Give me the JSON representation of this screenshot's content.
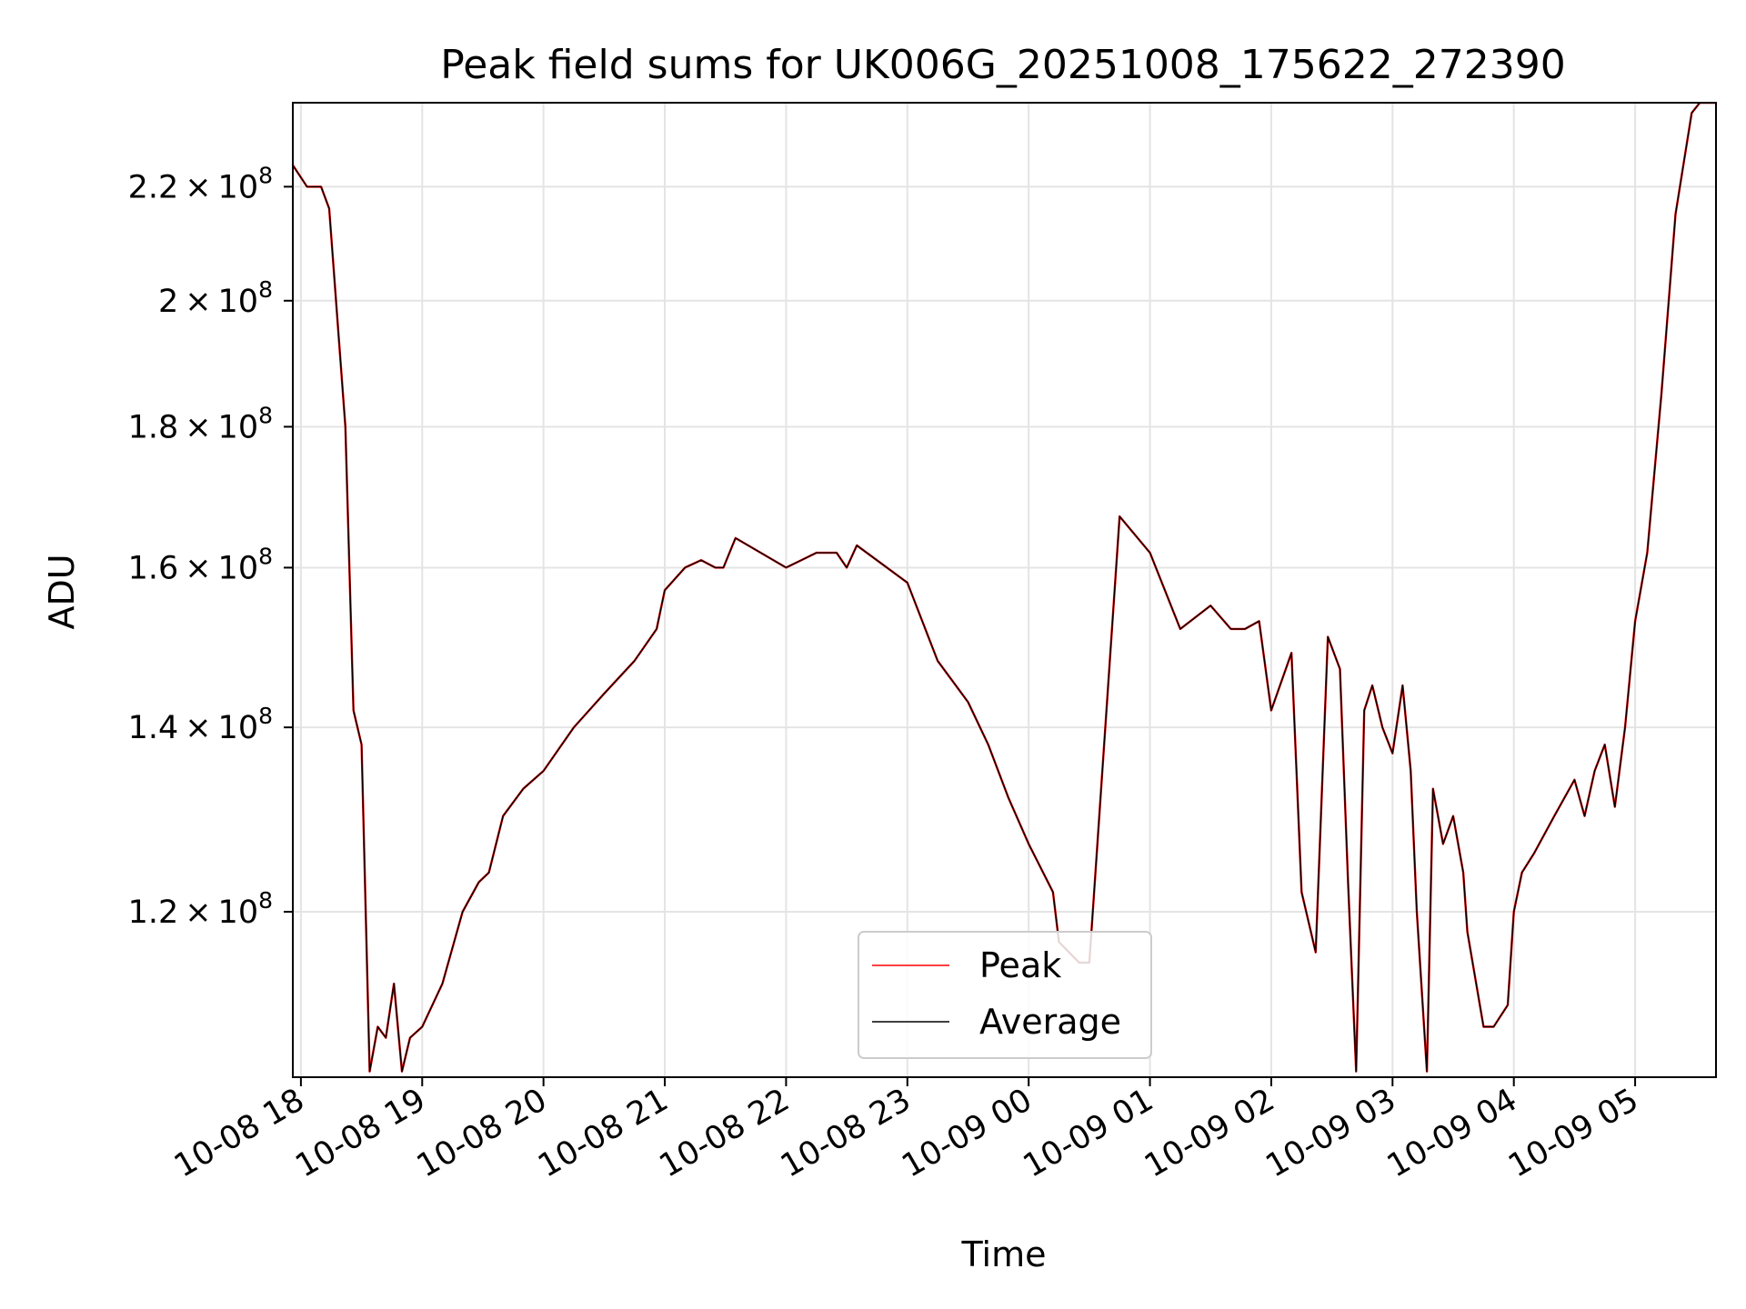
{
  "chart_data": {
    "type": "line",
    "title": "Peak field sums for UK006G_20251008_175622_272390",
    "xlabel": "Time",
    "ylabel": "ADU",
    "yscale": "log",
    "grid": true,
    "legend": {
      "position": "bottom-center",
      "entries": [
        "Peak",
        "Average"
      ]
    },
    "xlim": [
      "2025-10-08 17:56",
      "2025-10-09 05:40"
    ],
    "ylim": [
      104500000.0,
      236000000.0
    ],
    "x_ticks": [
      "10-08 18",
      "10-08 19",
      "10-08 20",
      "10-08 21",
      "10-08 22",
      "10-08 23",
      "10-09 00",
      "10-09 01",
      "10-09 02",
      "10-09 03",
      "10-09 04",
      "10-09 05"
    ],
    "y_ticks": [
      {
        "mantissa": "1.2",
        "exponent": "8"
      },
      {
        "mantissa": "1.4",
        "exponent": "8"
      },
      {
        "mantissa": "1.6",
        "exponent": "8"
      },
      {
        "mantissa": "1.8",
        "exponent": "8"
      },
      {
        "mantissa": "2",
        "exponent": "8"
      },
      {
        "mantissa": "2.2",
        "exponent": "8"
      }
    ],
    "x": [
      "2025-10-08 17:56",
      "2025-10-08 18:03",
      "2025-10-08 18:10",
      "2025-10-08 18:14",
      "2025-10-08 18:22",
      "2025-10-08 18:26",
      "2025-10-08 18:30",
      "2025-10-08 18:34",
      "2025-10-08 18:38",
      "2025-10-08 18:42",
      "2025-10-08 18:46",
      "2025-10-08 18:50",
      "2025-10-08 18:54",
      "2025-10-08 19:00",
      "2025-10-08 19:10",
      "2025-10-08 19:20",
      "2025-10-08 19:28",
      "2025-10-08 19:33",
      "2025-10-08 19:40",
      "2025-10-08 19:50",
      "2025-10-08 20:00",
      "2025-10-08 20:15",
      "2025-10-08 20:30",
      "2025-10-08 20:45",
      "2025-10-08 20:56",
      "2025-10-08 21:00",
      "2025-10-08 21:10",
      "2025-10-08 21:18",
      "2025-10-08 21:25",
      "2025-10-08 21:29",
      "2025-10-08 21:35",
      "2025-10-08 22:00",
      "2025-10-08 22:15",
      "2025-10-08 22:25",
      "2025-10-08 22:30",
      "2025-10-08 22:35",
      "2025-10-08 23:00",
      "2025-10-08 23:15",
      "2025-10-08 23:30",
      "2025-10-08 23:40",
      "2025-10-08 23:50",
      "2025-10-09 00:00",
      "2025-10-09 00:12",
      "2025-10-09 00:15",
      "2025-10-09 00:20",
      "2025-10-09 00:25",
      "2025-10-09 00:30",
      "2025-10-09 00:45",
      "2025-10-09 01:00",
      "2025-10-09 01:15",
      "2025-10-09 01:30",
      "2025-10-09 01:40",
      "2025-10-09 01:47",
      "2025-10-09 01:54",
      "2025-10-09 02:00",
      "2025-10-09 02:10",
      "2025-10-09 02:15",
      "2025-10-09 02:22",
      "2025-10-09 02:28",
      "2025-10-09 02:34",
      "2025-10-09 02:38",
      "2025-10-09 02:42",
      "2025-10-09 02:46",
      "2025-10-09 02:50",
      "2025-10-09 02:55",
      "2025-10-09 03:00",
      "2025-10-09 03:05",
      "2025-10-09 03:09",
      "2025-10-09 03:12",
      "2025-10-09 03:17",
      "2025-10-09 03:20",
      "2025-10-09 03:25",
      "2025-10-09 03:30",
      "2025-10-09 03:35",
      "2025-10-09 03:37",
      "2025-10-09 03:45",
      "2025-10-09 03:50",
      "2025-10-09 03:57",
      "2025-10-09 04:00",
      "2025-10-09 04:04",
      "2025-10-09 04:10",
      "2025-10-09 04:20",
      "2025-10-09 04:30",
      "2025-10-09 04:35",
      "2025-10-09 04:40",
      "2025-10-09 04:45",
      "2025-10-09 04:50",
      "2025-10-09 04:55",
      "2025-10-09 05:00",
      "2025-10-09 05:06",
      "2025-10-09 05:13",
      "2025-10-09 05:20",
      "2025-10-09 05:28",
      "2025-10-09 05:32",
      "2025-10-09 05:40"
    ],
    "series": [
      {
        "name": "Peak",
        "color": "#ff0000",
        "values": [
          224000000.0,
          220000000.0,
          220000000.0,
          216000000.0,
          180000000.0,
          142000000.0,
          138000000.0,
          105000000.0,
          109000000.0,
          108000000.0,
          113000000.0,
          105000000.0,
          108000000.0,
          109000000.0,
          113000000.0,
          120000000.0,
          123000000.0,
          124000000.0,
          130000000.0,
          133000000.0,
          135000000.0,
          140000000.0,
          144000000.0,
          148000000.0,
          152000000.0,
          157000000.0,
          160000000.0,
          161000000.0,
          160000000.0,
          160000000.0,
          164000000.0,
          160000000.0,
          162000000.0,
          162000000.0,
          160000000.0,
          163000000.0,
          158000000.0,
          148000000.0,
          143000000.0,
          138000000.0,
          132000000.0,
          127000000.0,
          122000000.0,
          117000000.0,
          116000000.0,
          115000000.0,
          115000000.0,
          167000000.0,
          162000000.0,
          152000000.0,
          155000000.0,
          152000000.0,
          152000000.0,
          153000000.0,
          142000000.0,
          149000000.0,
          122000000.0,
          116000000.0,
          151000000.0,
          147000000.0,
          123000000.0,
          105000000.0,
          142000000.0,
          145000000.0,
          140000000.0,
          137000000.0,
          145000000.0,
          135000000.0,
          120000000.0,
          105000000.0,
          133000000.0,
          127000000.0,
          130000000.0,
          124000000.0,
          118000000.0,
          109000000.0,
          109000000.0,
          111000000.0,
          120000000.0,
          124000000.0,
          126000000.0,
          130000000.0,
          134000000.0,
          130000000.0,
          135000000.0,
          138000000.0,
          131000000.0,
          140000000.0,
          153000000.0,
          162000000.0,
          185000000.0,
          215000000.0,
          234000000.0,
          236000000.0,
          236000000.0
        ]
      },
      {
        "name": "Average",
        "color": "#000000",
        "values": [
          224000000.0,
          220000000.0,
          220000000.0,
          216000000.0,
          180000000.0,
          142000000.0,
          138000000.0,
          105000000.0,
          109000000.0,
          108000000.0,
          113000000.0,
          105000000.0,
          108000000.0,
          109000000.0,
          113000000.0,
          120000000.0,
          123000000.0,
          124000000.0,
          130000000.0,
          133000000.0,
          135000000.0,
          140000000.0,
          144000000.0,
          148000000.0,
          152000000.0,
          157000000.0,
          160000000.0,
          161000000.0,
          160000000.0,
          160000000.0,
          164000000.0,
          160000000.0,
          162000000.0,
          162000000.0,
          160000000.0,
          163000000.0,
          158000000.0,
          148000000.0,
          143000000.0,
          138000000.0,
          132000000.0,
          127000000.0,
          122000000.0,
          117000000.0,
          116000000.0,
          115000000.0,
          115000000.0,
          167000000.0,
          162000000.0,
          152000000.0,
          155000000.0,
          152000000.0,
          152000000.0,
          153000000.0,
          142000000.0,
          149000000.0,
          122000000.0,
          116000000.0,
          151000000.0,
          147000000.0,
          123000000.0,
          105000000.0,
          142000000.0,
          145000000.0,
          140000000.0,
          137000000.0,
          145000000.0,
          135000000.0,
          120000000.0,
          105000000.0,
          133000000.0,
          127000000.0,
          130000000.0,
          124000000.0,
          118000000.0,
          109000000.0,
          109000000.0,
          111000000.0,
          120000000.0,
          124000000.0,
          126000000.0,
          130000000.0,
          134000000.0,
          130000000.0,
          135000000.0,
          138000000.0,
          131000000.0,
          140000000.0,
          153000000.0,
          162000000.0,
          185000000.0,
          215000000.0,
          234000000.0,
          236000000.0,
          236000000.0
        ]
      }
    ]
  }
}
